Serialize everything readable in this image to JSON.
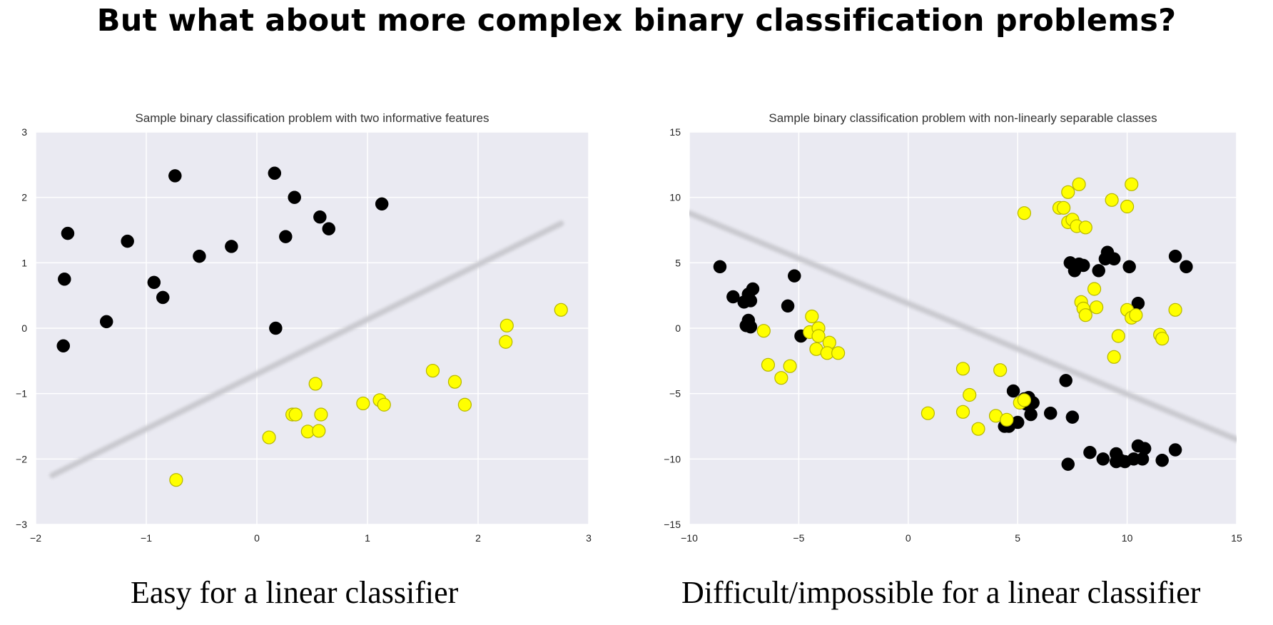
{
  "slide": {
    "title": "But what about more complex binary classification problems?",
    "caption_left": "Easy for a linear classifier",
    "caption_right": "Difficult/impossible for a linear classifier"
  },
  "colors": {
    "plot_background": "#eaeaf2",
    "grid": "#ffffff",
    "class_0": "#000000",
    "class_1": "#ffff00",
    "class_1_edge": "#b5b500",
    "decision_line": "#c9c9cf"
  },
  "chart_data": [
    {
      "type": "scatter",
      "title": "Sample binary classification problem with two informative features",
      "xlim": [
        -2,
        3
      ],
      "ylim": [
        -3,
        3
      ],
      "xticks": [
        -2,
        -1,
        0,
        1,
        2,
        3
      ],
      "yticks": [
        -3,
        -2,
        -1,
        0,
        1,
        2,
        3
      ],
      "grid": true,
      "series": [
        {
          "color": "#000000",
          "points": [
            [
              -1.75,
              -0.27
            ],
            [
              -1.74,
              0.75
            ],
            [
              -1.71,
              1.45
            ],
            [
              -1.36,
              0.1
            ],
            [
              -1.17,
              1.33
            ],
            [
              -0.93,
              0.7
            ],
            [
              -0.85,
              0.47
            ],
            [
              -0.74,
              2.33
            ],
            [
              -0.52,
              1.1
            ],
            [
              -0.23,
              1.25
            ],
            [
              0.16,
              2.37
            ],
            [
              0.17,
              0.0
            ],
            [
              0.26,
              1.4
            ],
            [
              0.34,
              2.0
            ],
            [
              0.57,
              1.7
            ],
            [
              0.65,
              1.52
            ],
            [
              1.13,
              1.9
            ]
          ]
        },
        {
          "color": "#ffff00",
          "points": [
            [
              -0.73,
              -2.32
            ],
            [
              0.11,
              -1.67
            ],
            [
              0.32,
              -1.32
            ],
            [
              0.35,
              -1.32
            ],
            [
              0.46,
              -1.58
            ],
            [
              0.53,
              -0.85
            ],
            [
              0.56,
              -1.57
            ],
            [
              0.58,
              -1.32
            ],
            [
              0.96,
              -1.15
            ],
            [
              1.11,
              -1.1
            ],
            [
              1.15,
              -1.17
            ],
            [
              1.59,
              -0.65
            ],
            [
              1.79,
              -0.82
            ],
            [
              1.88,
              -1.17
            ],
            [
              2.25,
              -0.21
            ],
            [
              2.26,
              0.04
            ],
            [
              2.75,
              0.28
            ]
          ]
        }
      ],
      "line": [
        [
          -1.85,
          -2.25
        ],
        [
          2.75,
          1.6
        ]
      ]
    },
    {
      "type": "scatter",
      "title": "Sample binary classification problem with non-linearly separable classes",
      "xlim": [
        -10,
        15
      ],
      "ylim": [
        -15,
        15
      ],
      "xticks": [
        -10,
        -5,
        0,
        5,
        10,
        15
      ],
      "yticks": [
        -15,
        -10,
        -5,
        0,
        5,
        10,
        15
      ],
      "grid": true,
      "series": [
        {
          "color": "#000000",
          "points": [
            [
              -8.6,
              4.7
            ],
            [
              -8.0,
              2.4
            ],
            [
              -7.5,
              2.0
            ],
            [
              -7.3,
              2.6
            ],
            [
              -7.1,
              3.0
            ],
            [
              -7.2,
              2.1
            ],
            [
              -7.3,
              0.6
            ],
            [
              -7.4,
              0.2
            ],
            [
              -7.2,
              0.1
            ],
            [
              -5.5,
              1.7
            ],
            [
              -5.2,
              4.0
            ],
            [
              -4.9,
              -0.6
            ],
            [
              4.8,
              -4.8
            ],
            [
              5.0,
              -7.2
            ],
            [
              4.6,
              -7.5
            ],
            [
              4.4,
              -7.5
            ],
            [
              5.3,
              -5.4
            ],
            [
              5.4,
              -5.8
            ],
            [
              5.5,
              -5.3
            ],
            [
              5.7,
              -5.7
            ],
            [
              5.6,
              -6.6
            ],
            [
              6.5,
              -6.5
            ],
            [
              7.2,
              -4.0
            ],
            [
              7.5,
              -6.8
            ],
            [
              7.3,
              -10.4
            ],
            [
              8.3,
              -9.5
            ],
            [
              8.9,
              -10.0
            ],
            [
              9.5,
              -9.6
            ],
            [
              9.7,
              -10.1
            ],
            [
              9.9,
              -10.2
            ],
            [
              9.5,
              -10.2
            ],
            [
              10.3,
              -10.0
            ],
            [
              10.5,
              -9.0
            ],
            [
              10.8,
              -9.2
            ],
            [
              10.7,
              -10.0
            ],
            [
              11.6,
              -10.1
            ],
            [
              12.2,
              -9.3
            ],
            [
              7.4,
              5.0
            ],
            [
              7.6,
              4.4
            ],
            [
              7.8,
              4.9
            ],
            [
              8.0,
              4.8
            ],
            [
              8.7,
              4.4
            ],
            [
              9.1,
              5.8
            ],
            [
              9.4,
              5.3
            ],
            [
              9.0,
              5.3
            ],
            [
              10.1,
              4.7
            ],
            [
              10.5,
              1.9
            ],
            [
              12.2,
              5.5
            ],
            [
              12.7,
              4.7
            ]
          ]
        },
        {
          "color": "#ffff00",
          "points": [
            [
              -6.6,
              -0.2
            ],
            [
              -6.4,
              -2.8
            ],
            [
              -5.8,
              -3.8
            ],
            [
              -5.4,
              -2.9
            ],
            [
              -4.4,
              0.9
            ],
            [
              -4.5,
              -0.3
            ],
            [
              -4.1,
              0.0
            ],
            [
              -4.1,
              -0.6
            ],
            [
              -4.2,
              -1.6
            ],
            [
              -3.6,
              -1.1
            ],
            [
              -3.7,
              -1.9
            ],
            [
              -3.2,
              -1.9
            ],
            [
              0.9,
              -6.5
            ],
            [
              2.5,
              -6.4
            ],
            [
              2.5,
              -3.1
            ],
            [
              2.8,
              -5.1
            ],
            [
              3.2,
              -7.7
            ],
            [
              4.0,
              -6.7
            ],
            [
              4.2,
              -3.2
            ],
            [
              4.5,
              -7.0
            ],
            [
              5.1,
              -5.7
            ],
            [
              5.3,
              -5.5
            ],
            [
              5.3,
              8.8
            ],
            [
              6.9,
              9.2
            ],
            [
              7.1,
              9.2
            ],
            [
              7.3,
              8.1
            ],
            [
              7.3,
              10.4
            ],
            [
              7.5,
              8.3
            ],
            [
              7.7,
              7.8
            ],
            [
              7.8,
              11.0
            ],
            [
              8.1,
              7.7
            ],
            [
              7.9,
              2.0
            ],
            [
              8.0,
              1.5
            ],
            [
              8.1,
              1.0
            ],
            [
              8.5,
              3.0
            ],
            [
              8.6,
              1.6
            ],
            [
              9.3,
              9.8
            ],
            [
              9.4,
              -2.2
            ],
            [
              9.6,
              -0.6
            ],
            [
              10.0,
              9.3
            ],
            [
              10.2,
              11.0
            ],
            [
              10.0,
              1.4
            ],
            [
              10.2,
              0.8
            ],
            [
              10.4,
              1.0
            ],
            [
              11.5,
              -0.5
            ],
            [
              11.6,
              -0.8
            ],
            [
              12.2,
              1.4
            ]
          ]
        }
      ],
      "line": [
        [
          -10.0,
          8.8
        ],
        [
          15.0,
          -8.5
        ]
      ]
    }
  ]
}
